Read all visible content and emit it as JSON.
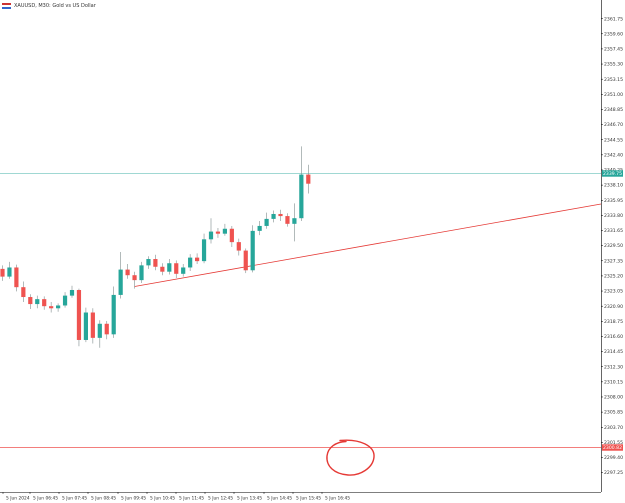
{
  "window": {
    "symbol_title": "XAUUSD, M30: Gold vs US Dollar",
    "flag_icon": "us-flag-icon"
  },
  "colors": {
    "bull": "#26a69a",
    "bear": "#ef5350",
    "wick": "#7f8c8d",
    "axis_text": "#333333",
    "current_price_line": "#80cbc4",
    "current_price_label_bg": "#26a69a",
    "target_line": "#ef5350",
    "target_label_bg": "#ef5350",
    "trendline": "#e53935",
    "annotation_circle": "#e53935"
  },
  "chart_data": {
    "type": "candlestick",
    "price_range": [
      2294.5,
      2364.4
    ],
    "y_ticks": [
      "2361.75",
      "2359.60",
      "2357.45",
      "2355.30",
      "2353.15",
      "2351.00",
      "2348.85",
      "2346.70",
      "2344.55",
      "2342.40",
      "2340.25",
      "2338.10",
      "2335.95",
      "2333.80",
      "2331.65",
      "2329.50",
      "2327.35",
      "2325.20",
      "2323.05",
      "2320.90",
      "2318.75",
      "2316.60",
      "2314.45",
      "2312.30",
      "2310.15",
      "2308.00",
      "2305.85",
      "2303.70",
      "2301.55",
      "2299.40",
      "2297.25"
    ],
    "x_labels": [
      "5 Jun 2024",
      "5 Jun 06:45",
      "5 Jun 07:45",
      "5 Jun 08:45",
      "5 Jun 09:45",
      "5 Jun 10:45",
      "5 Jun 11:45",
      "5 Jun 12:45",
      "5 Jun 13:45",
      "5 Jun 14:45",
      "5 Jun 15:45",
      "5 Jun 16:45"
    ],
    "current_price": {
      "value": 2339.75,
      "label": "2339.75"
    },
    "target_level": {
      "value": 2300.82,
      "label": "2300.82"
    },
    "trendline": {
      "from": {
        "candle": 19,
        "price": 2323.7
      },
      "to": {
        "candle": 90,
        "price": 2336.1
      }
    },
    "candles": [
      {
        "o": 2326.2,
        "h": 2326.7,
        "l": 2324.5,
        "c": 2325.1
      },
      {
        "o": 2325.1,
        "h": 2327.2,
        "l": 2324.8,
        "c": 2326.4
      },
      {
        "o": 2326.4,
        "h": 2326.8,
        "l": 2323.0,
        "c": 2323.6
      },
      {
        "o": 2323.6,
        "h": 2324.4,
        "l": 2321.5,
        "c": 2322.2
      },
      {
        "o": 2322.2,
        "h": 2322.6,
        "l": 2320.5,
        "c": 2321.2
      },
      {
        "o": 2321.2,
        "h": 2322.4,
        "l": 2320.6,
        "c": 2321.9
      },
      {
        "o": 2321.9,
        "h": 2322.3,
        "l": 2320.4,
        "c": 2320.9
      },
      {
        "o": 2320.9,
        "h": 2321.5,
        "l": 2320.0,
        "c": 2320.6
      },
      {
        "o": 2320.6,
        "h": 2321.3,
        "l": 2320.1,
        "c": 2321.0
      },
      {
        "o": 2321.0,
        "h": 2322.9,
        "l": 2320.7,
        "c": 2322.4
      },
      {
        "o": 2322.4,
        "h": 2323.8,
        "l": 2322.1,
        "c": 2323.2
      },
      {
        "o": 2323.2,
        "h": 2323.4,
        "l": 2315.2,
        "c": 2316.1
      },
      {
        "o": 2316.1,
        "h": 2320.7,
        "l": 2315.8,
        "c": 2320.0
      },
      {
        "o": 2320.0,
        "h": 2320.6,
        "l": 2315.6,
        "c": 2316.4
      },
      {
        "o": 2316.4,
        "h": 2318.9,
        "l": 2315.0,
        "c": 2318.4
      },
      {
        "o": 2318.4,
        "h": 2318.8,
        "l": 2316.2,
        "c": 2316.9
      },
      {
        "o": 2316.9,
        "h": 2323.7,
        "l": 2316.4,
        "c": 2322.5
      },
      {
        "o": 2322.5,
        "h": 2328.6,
        "l": 2322.0,
        "c": 2326.1
      },
      {
        "o": 2326.1,
        "h": 2326.9,
        "l": 2324.8,
        "c": 2325.3
      },
      {
        "o": 2325.3,
        "h": 2325.8,
        "l": 2323.4,
        "c": 2324.6
      },
      {
        "o": 2324.6,
        "h": 2327.2,
        "l": 2324.2,
        "c": 2326.7
      },
      {
        "o": 2326.7,
        "h": 2328.0,
        "l": 2326.2,
        "c": 2327.6
      },
      {
        "o": 2327.6,
        "h": 2328.2,
        "l": 2326.0,
        "c": 2326.5
      },
      {
        "o": 2326.5,
        "h": 2327.0,
        "l": 2325.3,
        "c": 2325.8
      },
      {
        "o": 2325.8,
        "h": 2327.6,
        "l": 2325.4,
        "c": 2327.0
      },
      {
        "o": 2327.0,
        "h": 2327.4,
        "l": 2324.9,
        "c": 2325.5
      },
      {
        "o": 2325.5,
        "h": 2326.9,
        "l": 2325.1,
        "c": 2326.4
      },
      {
        "o": 2326.4,
        "h": 2328.3,
        "l": 2325.9,
        "c": 2327.8
      },
      {
        "o": 2327.8,
        "h": 2328.4,
        "l": 2326.9,
        "c": 2327.3
      },
      {
        "o": 2327.3,
        "h": 2331.2,
        "l": 2327.0,
        "c": 2330.4
      },
      {
        "o": 2330.4,
        "h": 2333.4,
        "l": 2329.8,
        "c": 2331.5
      },
      {
        "o": 2331.5,
        "h": 2332.0,
        "l": 2330.6,
        "c": 2331.2
      },
      {
        "o": 2331.2,
        "h": 2332.6,
        "l": 2330.9,
        "c": 2331.9
      },
      {
        "o": 2331.9,
        "h": 2332.3,
        "l": 2329.3,
        "c": 2330.0
      },
      {
        "o": 2330.0,
        "h": 2330.5,
        "l": 2328.1,
        "c": 2328.8
      },
      {
        "o": 2328.8,
        "h": 2329.1,
        "l": 2325.6,
        "c": 2326.0
      },
      {
        "o": 2326.0,
        "h": 2332.4,
        "l": 2325.7,
        "c": 2331.6
      },
      {
        "o": 2331.6,
        "h": 2333.0,
        "l": 2331.0,
        "c": 2332.3
      },
      {
        "o": 2332.3,
        "h": 2334.2,
        "l": 2331.9,
        "c": 2333.3
      },
      {
        "o": 2333.3,
        "h": 2334.5,
        "l": 2332.8,
        "c": 2334.0
      },
      {
        "o": 2334.0,
        "h": 2334.6,
        "l": 2333.0,
        "c": 2333.7
      },
      {
        "o": 2333.7,
        "h": 2334.1,
        "l": 2332.2,
        "c": 2332.6
      },
      {
        "o": 2332.6,
        "h": 2335.5,
        "l": 2330.1,
        "c": 2333.4
      },
      {
        "o": 2333.4,
        "h": 2343.6,
        "l": 2333.0,
        "c": 2339.6
      },
      {
        "o": 2339.6,
        "h": 2341.0,
        "l": 2336.9,
        "c": 2338.3
      }
    ]
  }
}
